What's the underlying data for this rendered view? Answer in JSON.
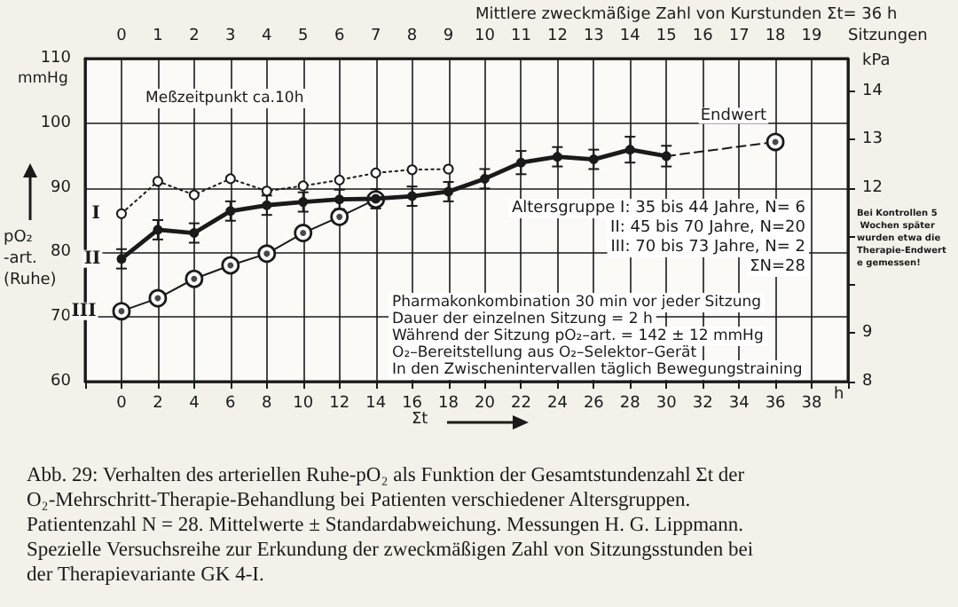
{
  "chart_data": {
    "type": "line",
    "title": "Abb. 29: Verhalten des arteriellen Ruhe-pO₂ als Funktion der Gesamtstundenzahl Σt der\nO₂-Mehrschritt-Therapie-Behandlung bei Patienten verschiedener Altersgruppen.\nPatientenzahl N = 28. Mittelwerte ± Standardabweichung. Messungen H. G. Lippmann.\nSpezielle Versuchsreihe zur Erkundung der zweckmäßigen Zahl von Sitzungsstunden bei\nder Therapievariante GK 4-I.",
    "xlabel": "Σt",
    "ylabel": "pO₂-art. (Ruhe)",
    "y2label": "kPa",
    "x2label": "Sitzungen",
    "xlim": [
      -2,
      40
    ],
    "xticks": [
      0,
      2,
      4,
      6,
      8,
      10,
      12,
      14,
      16,
      18,
      20,
      22,
      24,
      26,
      28,
      30,
      32,
      34,
      36,
      38
    ],
    "x2lim": [
      -1,
      20
    ],
    "x2ticks": [
      0,
      1,
      2,
      3,
      4,
      5,
      6,
      7,
      8,
      9,
      10,
      11,
      12,
      13,
      14,
      15,
      16,
      17,
      18,
      19
    ],
    "ylim": [
      60,
      110
    ],
    "yticks": [
      60,
      70,
      80,
      90,
      100,
      110
    ],
    "y2lim": [
      8,
      14.67
    ],
    "y2ticks": [
      8,
      9,
      {
        "value": 10,
        "label": null
      },
      {
        "value": 11,
        "label": null
      },
      12,
      13,
      14
    ],
    "grid": true,
    "marker": "circle",
    "series": [
      {
        "name": "I",
        "color": "#1a1a1a",
        "line_style": "dotted",
        "x": [
          0,
          2,
          4,
          6,
          8,
          10,
          12,
          14,
          16,
          18
        ],
        "values": [
          86,
          91,
          88.9,
          91.4,
          89.5,
          90.3,
          91.2,
          92.3,
          92.8,
          92.9
        ]
      },
      {
        "name": "II",
        "color": "#1a1a1a",
        "line_style": "solid",
        "x": [
          0,
          2,
          4,
          6,
          8,
          10,
          12,
          14,
          16,
          18,
          20,
          22,
          24,
          26,
          28,
          30
        ],
        "values": [
          79,
          83.5,
          83,
          86.4,
          87.3,
          87.8,
          88.2,
          88.3,
          88.7,
          89.4,
          91.4,
          93.9,
          94.8,
          94.4,
          95.9,
          94.9
        ],
        "errors": [
          1.5,
          1.5,
          1.5,
          1.5,
          1.5,
          1.5,
          1.5,
          1.5,
          1.5,
          1.5,
          1.5,
          1.8,
          1.5,
          1.5,
          2,
          1.6
        ]
      },
      {
        "name": "III",
        "color": "#1a1a1a",
        "line_style": "solid",
        "x": [
          0,
          2,
          4,
          6,
          8,
          10,
          12,
          14
        ],
        "values": [
          70.9,
          72.9,
          75.9,
          78,
          79.8,
          83,
          85.5,
          88.2
        ]
      },
      {
        "name": "Endwert",
        "color": "#1a1a1a",
        "line_style": "dashed",
        "x": [
          30,
          36
        ],
        "values": [
          94.9,
          97.1
        ]
      }
    ],
    "annotations": [
      "Mittlere zweckmäßige Zahl von Kurstunden Σt= 36 h",
      "Meßzeitpunkt ca.10h",
      "mmHg",
      "Altersgruppe I: 35 bis 44 Jahre, N= 6",
      "II: 45 bis 70 Jahre, N=20",
      "III: 70 bis 73 Jahre, N= 2",
      "ΣN=28",
      "Pharmakonkombination 30 min vor jeder Sitzung",
      "Dauer der einzelnen Sitzung = 2 h",
      "Während der Sitzung pO₂–art. = 142 ± 12 mmHg",
      "O₂–Bereitstellung aus O₂–Selektor–Gerät",
      "In den Zwischenintervallen täglich Bewegungstraining",
      "Bei Kontrollen 5 Wochen später wurden etwa die Therapie-Endwerte gemessen!",
      "h"
    ]
  }
}
